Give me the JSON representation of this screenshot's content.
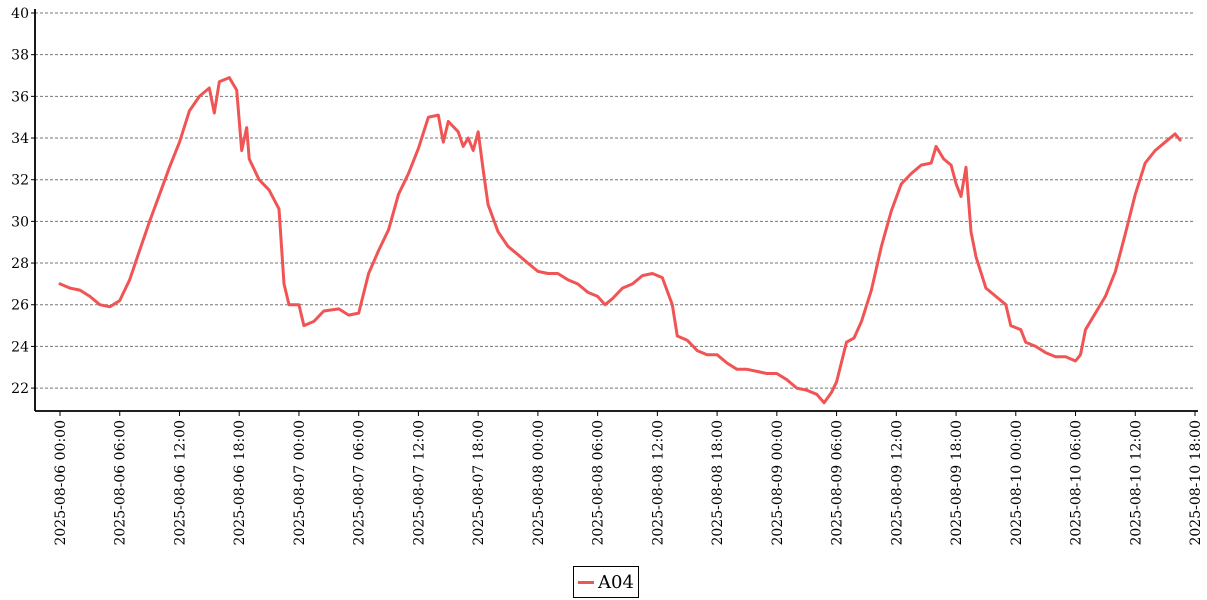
{
  "chart_data": {
    "type": "line",
    "title": "",
    "xlabel": "",
    "ylabel": "",
    "x_range": [
      "2025-08-06 00:00",
      "2025-08-10 18:00"
    ],
    "ylim": [
      20.9,
      40
    ],
    "grid": "horizontal dashed",
    "legend_position": "bottom-center",
    "y_ticks": [
      "22",
      "24",
      "26",
      "28",
      "30",
      "32",
      "34",
      "36",
      "38",
      "40"
    ],
    "x_ticks": [
      "2025-08-06 00:00",
      "2025-08-06 06:00",
      "2025-08-06 12:00",
      "2025-08-06 18:00",
      "2025-08-07 00:00",
      "2025-08-07 06:00",
      "2025-08-07 12:00",
      "2025-08-07 18:00",
      "2025-08-08 00:00",
      "2025-08-08 06:00",
      "2025-08-08 12:00",
      "2025-08-08 18:00",
      "2025-08-09 00:00",
      "2025-08-09 06:00",
      "2025-08-09 12:00",
      "2025-08-09 18:00",
      "2025-08-10 00:00",
      "2025-08-10 06:00",
      "2025-08-10 12:00",
      "2025-08-10 18:00"
    ],
    "series": [
      {
        "name": "A04",
        "color": "#f05454",
        "points": [
          [
            "2025-08-06 00:00",
            27.0
          ],
          [
            "2025-08-06 01:00",
            26.8
          ],
          [
            "2025-08-06 02:00",
            26.7
          ],
          [
            "2025-08-06 03:00",
            26.4
          ],
          [
            "2025-08-06 04:00",
            26.0
          ],
          [
            "2025-08-06 05:00",
            25.9
          ],
          [
            "2025-08-06 06:00",
            26.2
          ],
          [
            "2025-08-06 07:00",
            27.2
          ],
          [
            "2025-08-06 08:00",
            28.6
          ],
          [
            "2025-08-06 09:00",
            30.0
          ],
          [
            "2025-08-06 10:00",
            31.3
          ],
          [
            "2025-08-06 11:00",
            32.6
          ],
          [
            "2025-08-06 12:00",
            33.8
          ],
          [
            "2025-08-06 13:00",
            35.3
          ],
          [
            "2025-08-06 14:00",
            36.0
          ],
          [
            "2025-08-06 15:00",
            36.4
          ],
          [
            "2025-08-06 15:30",
            35.2
          ],
          [
            "2025-08-06 16:00",
            36.7
          ],
          [
            "2025-08-06 17:00",
            36.9
          ],
          [
            "2025-08-06 17:45",
            36.3
          ],
          [
            "2025-08-06 18:15",
            33.4
          ],
          [
            "2025-08-06 18:45",
            34.5
          ],
          [
            "2025-08-06 19:00",
            33.0
          ],
          [
            "2025-08-06 20:00",
            32.0
          ],
          [
            "2025-08-06 21:00",
            31.5
          ],
          [
            "2025-08-06 22:00",
            30.6
          ],
          [
            "2025-08-06 22:30",
            27.0
          ],
          [
            "2025-08-06 23:00",
            26.0
          ],
          [
            "2025-08-07 00:00",
            26.0
          ],
          [
            "2025-08-07 00:30",
            25.0
          ],
          [
            "2025-08-07 01:30",
            25.2
          ],
          [
            "2025-08-07 02:30",
            25.7
          ],
          [
            "2025-08-07 04:00",
            25.8
          ],
          [
            "2025-08-07 05:00",
            25.5
          ],
          [
            "2025-08-07 06:00",
            25.6
          ],
          [
            "2025-08-07 07:00",
            27.5
          ],
          [
            "2025-08-07 08:00",
            28.6
          ],
          [
            "2025-08-07 09:00",
            29.6
          ],
          [
            "2025-08-07 10:00",
            31.3
          ],
          [
            "2025-08-07 11:00",
            32.3
          ],
          [
            "2025-08-07 12:00",
            33.5
          ],
          [
            "2025-08-07 13:00",
            35.0
          ],
          [
            "2025-08-07 14:00",
            35.1
          ],
          [
            "2025-08-07 14:30",
            33.8
          ],
          [
            "2025-08-07 15:00",
            34.8
          ],
          [
            "2025-08-07 16:00",
            34.3
          ],
          [
            "2025-08-07 16:30",
            33.6
          ],
          [
            "2025-08-07 17:00",
            34.0
          ],
          [
            "2025-08-07 17:30",
            33.4
          ],
          [
            "2025-08-07 18:00",
            34.3
          ],
          [
            "2025-08-07 18:30",
            32.5
          ],
          [
            "2025-08-07 19:00",
            30.8
          ],
          [
            "2025-08-07 20:00",
            29.5
          ],
          [
            "2025-08-07 21:00",
            28.8
          ],
          [
            "2025-08-07 22:00",
            28.4
          ],
          [
            "2025-08-07 23:00",
            28.0
          ],
          [
            "2025-08-08 00:00",
            27.6
          ],
          [
            "2025-08-08 01:00",
            27.5
          ],
          [
            "2025-08-08 02:00",
            27.5
          ],
          [
            "2025-08-08 03:00",
            27.2
          ],
          [
            "2025-08-08 04:00",
            27.0
          ],
          [
            "2025-08-08 05:00",
            26.6
          ],
          [
            "2025-08-08 06:00",
            26.4
          ],
          [
            "2025-08-08 06:45",
            26.0
          ],
          [
            "2025-08-08 07:30",
            26.3
          ],
          [
            "2025-08-08 08:30",
            26.8
          ],
          [
            "2025-08-08 09:30",
            27.0
          ],
          [
            "2025-08-08 10:30",
            27.4
          ],
          [
            "2025-08-08 11:30",
            27.5
          ],
          [
            "2025-08-08 12:30",
            27.3
          ],
          [
            "2025-08-08 13:30",
            26.0
          ],
          [
            "2025-08-08 14:00",
            24.5
          ],
          [
            "2025-08-08 15:00",
            24.3
          ],
          [
            "2025-08-08 16:00",
            23.8
          ],
          [
            "2025-08-08 17:00",
            23.6
          ],
          [
            "2025-08-08 18:00",
            23.6
          ],
          [
            "2025-08-08 19:00",
            23.2
          ],
          [
            "2025-08-08 20:00",
            22.9
          ],
          [
            "2025-08-08 21:00",
            22.9
          ],
          [
            "2025-08-08 22:00",
            22.8
          ],
          [
            "2025-08-08 23:00",
            22.7
          ],
          [
            "2025-08-09 00:00",
            22.7
          ],
          [
            "2025-08-09 01:00",
            22.4
          ],
          [
            "2025-08-09 02:00",
            22.0
          ],
          [
            "2025-08-09 03:00",
            21.9
          ],
          [
            "2025-08-09 04:00",
            21.7
          ],
          [
            "2025-08-09 04:45",
            21.3
          ],
          [
            "2025-08-09 05:30",
            21.8
          ],
          [
            "2025-08-09 06:00",
            22.3
          ],
          [
            "2025-08-09 07:00",
            24.2
          ],
          [
            "2025-08-09 07:45",
            24.4
          ],
          [
            "2025-08-09 08:30",
            25.2
          ],
          [
            "2025-08-09 09:30",
            26.7
          ],
          [
            "2025-08-09 10:30",
            28.8
          ],
          [
            "2025-08-09 11:30",
            30.5
          ],
          [
            "2025-08-09 12:30",
            31.8
          ],
          [
            "2025-08-09 13:30",
            32.3
          ],
          [
            "2025-08-09 14:30",
            32.7
          ],
          [
            "2025-08-09 15:30",
            32.8
          ],
          [
            "2025-08-09 16:00",
            33.6
          ],
          [
            "2025-08-09 16:45",
            33.0
          ],
          [
            "2025-08-09 17:30",
            32.7
          ],
          [
            "2025-08-09 18:00",
            31.8
          ],
          [
            "2025-08-09 18:30",
            31.2
          ],
          [
            "2025-08-09 19:00",
            32.6
          ],
          [
            "2025-08-09 19:30",
            29.5
          ],
          [
            "2025-08-09 20:00",
            28.3
          ],
          [
            "2025-08-09 21:00",
            26.8
          ],
          [
            "2025-08-09 22:00",
            26.4
          ],
          [
            "2025-08-09 23:00",
            26.0
          ],
          [
            "2025-08-09 23:30",
            25.0
          ],
          [
            "2025-08-10 00:30",
            24.8
          ],
          [
            "2025-08-10 01:00",
            24.2
          ],
          [
            "2025-08-10 02:00",
            24.0
          ],
          [
            "2025-08-10 03:00",
            23.7
          ],
          [
            "2025-08-10 04:00",
            23.5
          ],
          [
            "2025-08-10 05:00",
            23.5
          ],
          [
            "2025-08-10 06:00",
            23.3
          ],
          [
            "2025-08-10 06:30",
            23.6
          ],
          [
            "2025-08-10 07:00",
            24.8
          ],
          [
            "2025-08-10 08:00",
            25.6
          ],
          [
            "2025-08-10 09:00",
            26.4
          ],
          [
            "2025-08-10 10:00",
            27.6
          ],
          [
            "2025-08-10 11:00",
            29.4
          ],
          [
            "2025-08-10 12:00",
            31.3
          ],
          [
            "2025-08-10 13:00",
            32.8
          ],
          [
            "2025-08-10 14:00",
            33.4
          ],
          [
            "2025-08-10 15:00",
            33.8
          ],
          [
            "2025-08-10 16:00",
            34.2
          ],
          [
            "2025-08-10 16:30",
            33.9
          ]
        ]
      }
    ]
  }
}
